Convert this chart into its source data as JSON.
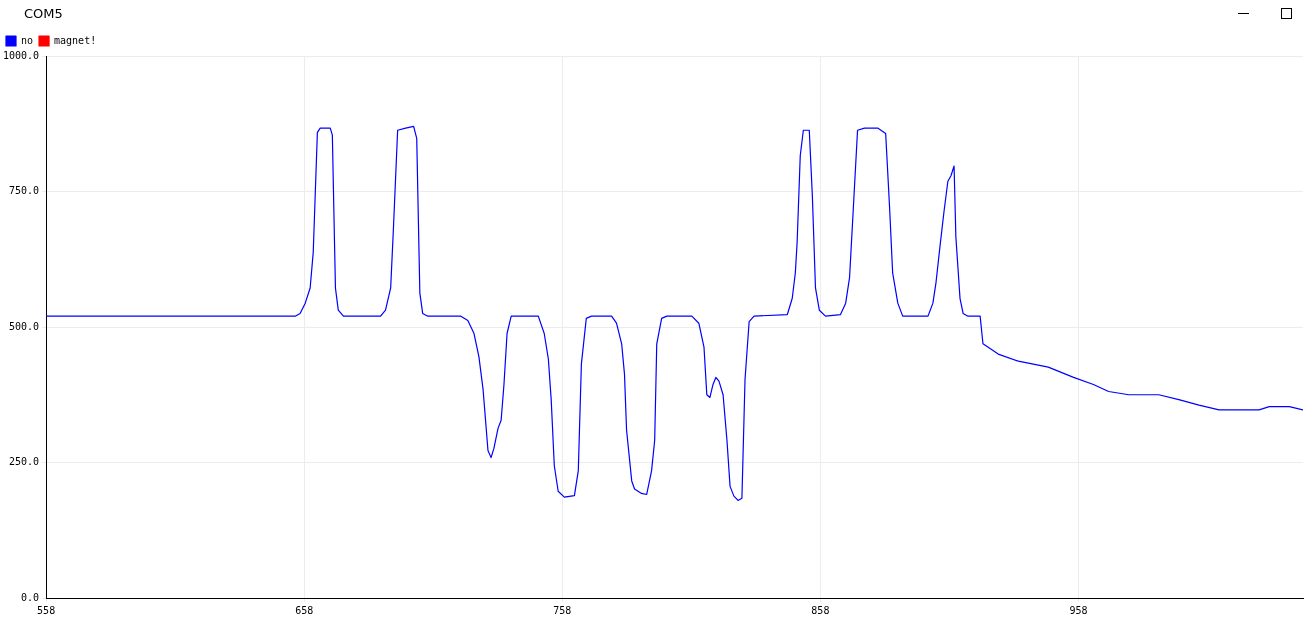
{
  "chart_data": {
    "type": "line",
    "title": "COM5",
    "x": [
      558,
      654.5,
      656.4,
      658.4,
      660.3,
      661.5,
      663.1,
      664.2,
      668.1,
      668.9,
      670.1,
      671.2,
      673.2,
      687.6,
      689.5,
      691.5,
      692.6,
      694.2,
      697.3,
      700.4,
      701.6,
      702.8,
      703.9,
      705.9,
      718.7,
      721.4,
      723.8,
      725.7,
      727.3,
      729.2,
      730.4,
      731.5,
      733.1,
      734.3,
      735.4,
      736.6,
      738.2,
      748.7,
      751,
      752.6,
      753.7,
      754.9,
      756.4,
      758.8,
      762.7,
      764.2,
      765.4,
      767.3,
      769.3,
      777.1,
      779,
      781,
      782.1,
      782.9,
      784.9,
      786,
      788.7,
      790.7,
      792.6,
      793.8,
      794.6,
      796.5,
      798.5,
      808.2,
      810.9,
      812.9,
      814,
      815.2,
      816.4,
      817.5,
      818.7,
      820.3,
      821.8,
      823,
      824.5,
      826.1,
      827.6,
      828.8,
      830.4,
      832.3,
      845.2,
      847.1,
      848.3,
      849,
      850.2,
      851.4,
      853.7,
      854.9,
      856.1,
      857.6,
      860,
      865.8,
      867.8,
      869.3,
      870.8,
      872.4,
      875.1,
      880.2,
      883.3,
      884.8,
      886,
      888,
      889.9,
      899.7,
      901.6,
      902.8,
      904.3,
      905.9,
      907.4,
      908.6,
      909.8,
      910.5,
      912.1,
      913.3,
      915.2,
      919.9,
      921,
      926.9,
      934.7,
      946.3,
      956.1,
      963.8,
      969.7,
      977.5,
      989.1,
      996.9,
      1004.7,
      1012.5,
      1028,
      1031.9,
      1039.7,
      1045
    ],
    "series": [
      {
        "name": "no",
        "color": "#0000ff",
        "values": [
          520,
          520,
          525,
          544,
          572,
          638,
          859,
          867,
          867,
          854,
          572,
          531,
          520,
          520,
          531,
          572,
          685,
          863,
          867,
          870,
          848,
          563,
          525,
          520,
          520,
          512,
          488,
          445,
          385,
          272,
          259,
          276,
          313,
          328,
          394,
          488,
          520,
          520,
          488,
          441,
          366,
          244,
          197,
          186,
          189,
          235,
          432,
          516,
          520,
          520,
          507,
          469,
          413,
          310,
          216,
          201,
          193,
          191,
          235,
          291,
          469,
          516,
          520,
          520,
          507,
          463,
          375,
          370,
          394,
          407,
          400,
          375,
          291,
          206,
          188,
          180,
          184,
          403,
          510,
          520,
          523,
          553,
          600,
          657,
          816,
          863,
          863,
          741,
          572,
          531,
          520,
          523,
          544,
          591,
          722,
          863,
          867,
          867,
          857,
          722,
          600,
          544,
          520,
          520,
          544,
          582,
          647,
          713,
          769,
          779,
          797,
          666,
          553,
          525,
          520,
          520,
          469,
          450,
          437,
          426,
          407,
          394,
          381,
          375,
          375,
          366,
          356,
          347,
          347,
          353,
          353,
          347
        ]
      },
      {
        "name": "magnet!",
        "color": "#ff0000",
        "values": [
          null,
          null,
          null,
          null,
          null,
          null,
          null,
          null,
          null,
          null,
          null,
          null,
          null,
          null,
          null,
          null,
          null,
          null,
          null,
          null,
          null,
          null,
          null,
          null,
          null,
          null,
          null,
          null,
          null,
          null,
          null,
          null,
          null,
          null,
          null,
          null,
          null,
          null,
          null,
          null,
          null,
          null,
          null,
          null,
          null,
          null,
          null,
          null,
          null,
          null,
          null,
          null,
          null,
          null,
          null,
          null,
          null,
          null,
          null,
          null,
          null,
          null,
          null,
          null,
          null,
          null,
          null,
          null,
          null,
          null,
          null,
          null,
          null,
          null,
          null,
          null,
          null,
          null,
          null,
          null,
          null,
          null,
          null,
          null,
          null,
          null,
          null,
          null,
          null,
          null,
          null,
          null,
          null,
          null,
          null,
          null,
          null,
          null,
          null,
          null,
          null,
          null,
          null,
          null,
          null,
          null,
          null,
          null,
          null,
          null,
          null,
          null,
          null,
          null,
          null,
          null,
          null,
          null,
          null,
          null,
          null,
          null,
          null,
          null,
          null,
          null,
          null,
          null,
          null,
          null,
          null,
          null
        ]
      }
    ],
    "xlim": [
      558,
      1045
    ],
    "xticks": [
      558,
      658,
      758,
      858,
      958
    ],
    "ylim": [
      0,
      1000
    ],
    "yticks": [
      {
        "value": 0,
        "label": "0.0"
      },
      {
        "value": 250,
        "label": "250.0"
      },
      {
        "value": 500,
        "label": "500.0"
      },
      {
        "value": 750,
        "label": "750.0"
      },
      {
        "value": 1000,
        "label": "1000.0"
      }
    ],
    "grid": true,
    "legend": "top left",
    "marker": "none",
    "line_style": "solid"
  }
}
